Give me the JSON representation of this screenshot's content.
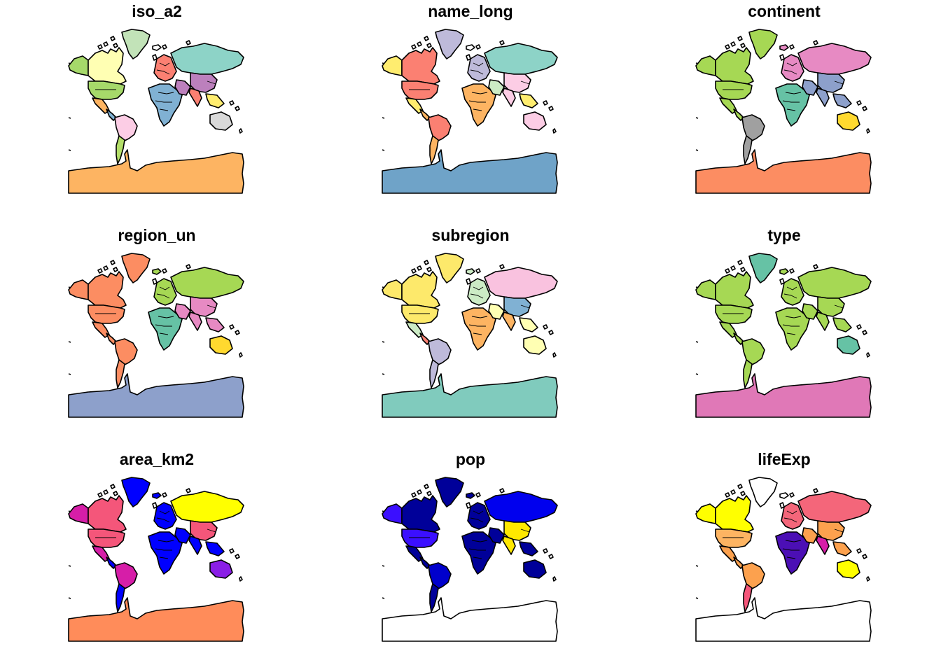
{
  "figure": {
    "panels": [
      {
        "title": "iso_a2",
        "colors": {
          "greenland": "#c2e3b8",
          "canada": "#ffffb3",
          "usa": "#a6d96a",
          "mexico": "#fdb462",
          "central_america": "#80b1d3",
          "south_america": "#fccde5",
          "south_america_south": "#b3de69",
          "russia": "#8dd3c7",
          "europe": "#fb8072",
          "africa": "#80b1d3",
          "middle_east": "#bc80bd",
          "china": "#bc80bd",
          "india": "#fb8072",
          "southeast_asia": "#ffed6f",
          "australia": "#d9d9d9",
          "antarctica": "#fdb462",
          "alaska": "#a6d96a",
          "iceland": "#ffffff"
        }
      },
      {
        "title": "name_long",
        "colors": {
          "greenland": "#bebada",
          "canada": "#fb8072",
          "usa": "#fb8072",
          "mexico": "#ffed6f",
          "central_america": "#fdb462",
          "south_america": "#fb8072",
          "south_america_south": "#fdb462",
          "russia": "#8dd3c7",
          "europe": "#bebada",
          "africa": "#fdb462",
          "middle_east": "#ccebc5",
          "china": "#fccde5",
          "india": "#fccde5",
          "southeast_asia": "#ffed6f",
          "australia": "#fccde5",
          "antarctica": "#6fa3c8",
          "alaska": "#ffed6f",
          "iceland": "#ffffff"
        }
      },
      {
        "title": "continent",
        "colors": {
          "greenland": "#a6d854",
          "canada": "#a6d854",
          "usa": "#a6d854",
          "mexico": "#a6d854",
          "central_america": "#a6d854",
          "south_america": "#a0a0a0",
          "south_america_south": "#a0a0a0",
          "russia": "#e78ac3",
          "europe": "#e78ac3",
          "africa": "#66c2a5",
          "middle_east": "#8da0cb",
          "china": "#8da0cb",
          "india": "#8da0cb",
          "southeast_asia": "#8da0cb",
          "australia": "#ffd92f",
          "antarctica": "#fc8d62",
          "alaska": "#a6d854",
          "iceland": "#e78ac3"
        }
      },
      {
        "title": "region_un",
        "colors": {
          "greenland": "#fc8d62",
          "canada": "#fc8d62",
          "usa": "#fc8d62",
          "mexico": "#fc8d62",
          "central_america": "#fc8d62",
          "south_america": "#fc8d62",
          "south_america_south": "#fc8d62",
          "russia": "#a6d854",
          "europe": "#a6d854",
          "africa": "#66c2a5",
          "middle_east": "#e78ac3",
          "china": "#e78ac3",
          "india": "#e78ac3",
          "southeast_asia": "#e78ac3",
          "australia": "#ffd92f",
          "antarctica": "#8da0cb",
          "alaska": "#fc8d62",
          "iceland": "#a6d854"
        }
      },
      {
        "title": "subregion",
        "colors": {
          "greenland": "#fde96b",
          "canada": "#fde96b",
          "usa": "#fde96b",
          "mexico": "#ccebc5",
          "central_america": "#fb8072",
          "south_america": "#bebada",
          "south_america_south": "#bebada",
          "russia": "#f9c2df",
          "europe": "#ccebc5",
          "africa": "#fdb462",
          "middle_east": "#ffffb3",
          "china": "#80b1d3",
          "india": "#fdb462",
          "southeast_asia": "#ffffb3",
          "australia": "#ffffb3",
          "antarctica": "#80cbbd",
          "alaska": "#fde96b",
          "iceland": "#ccebc5"
        }
      },
      {
        "title": "type",
        "colors": {
          "greenland": "#66c2a5",
          "canada": "#a6d854",
          "usa": "#a6d854",
          "mexico": "#a6d854",
          "central_america": "#a6d854",
          "south_america": "#a6d854",
          "south_america_south": "#a6d854",
          "russia": "#a6d854",
          "europe": "#a6d854",
          "africa": "#a6d854",
          "middle_east": "#a6d854",
          "china": "#a6d854",
          "india": "#a6d854",
          "southeast_asia": "#a6d854",
          "australia": "#66c2a5",
          "antarctica": "#e078b7",
          "alaska": "#a6d854",
          "iceland": "#a6d854"
        }
      },
      {
        "title": "area_km2",
        "colors": {
          "greenland": "#0000ff",
          "canada": "#f4567a",
          "usa": "#f4567a",
          "mexico": "#d61ea8",
          "central_america": "#0000ff",
          "south_america": "#d61ea8",
          "south_america_south": "#0000ff",
          "russia": "#ffff00",
          "europe": "#0000ff",
          "africa": "#0000ff",
          "middle_east": "#0000ff",
          "china": "#f4567a",
          "india": "#0000ff",
          "southeast_asia": "#0000ff",
          "australia": "#8a1ee6",
          "antarctica": "#ff8c5a",
          "alaska": "#d61ea8",
          "iceland": "#0000ff"
        }
      },
      {
        "title": "pop",
        "colors": {
          "greenland": "#000099",
          "canada": "#000099",
          "usa": "#3b0fff",
          "mexico": "#000099",
          "central_america": "#000099",
          "south_america": "#0000cc",
          "south_america_south": "#000099",
          "russia": "#0000ee",
          "europe": "#000099",
          "africa": "#000099",
          "middle_east": "#000099",
          "china": "#ffe800",
          "india": "#ffe800",
          "southeast_asia": "#000099",
          "australia": "#000099",
          "antarctica": "#ffffff",
          "alaska": "#3b0fff",
          "iceland": "#000099"
        }
      },
      {
        "title": "lifeExp",
        "colors": {
          "greenland": "#ffffff",
          "canada": "#ffff00",
          "usa": "#fdb462",
          "mexico": "#fca14e",
          "central_america": "#fca14e",
          "south_america": "#fca14e",
          "south_america_south": "#f4567a",
          "russia": "#f4667a",
          "europe": "#f4667a",
          "africa": "#4b0fb5",
          "middle_east": "#fca14e",
          "china": "#fca14e",
          "india": "#d61ea8",
          "southeast_asia": "#fca14e",
          "australia": "#ffff00",
          "antarctica": "#ffffff",
          "alaska": "#ffff00",
          "iceland": "#ffffff"
        }
      }
    ]
  }
}
